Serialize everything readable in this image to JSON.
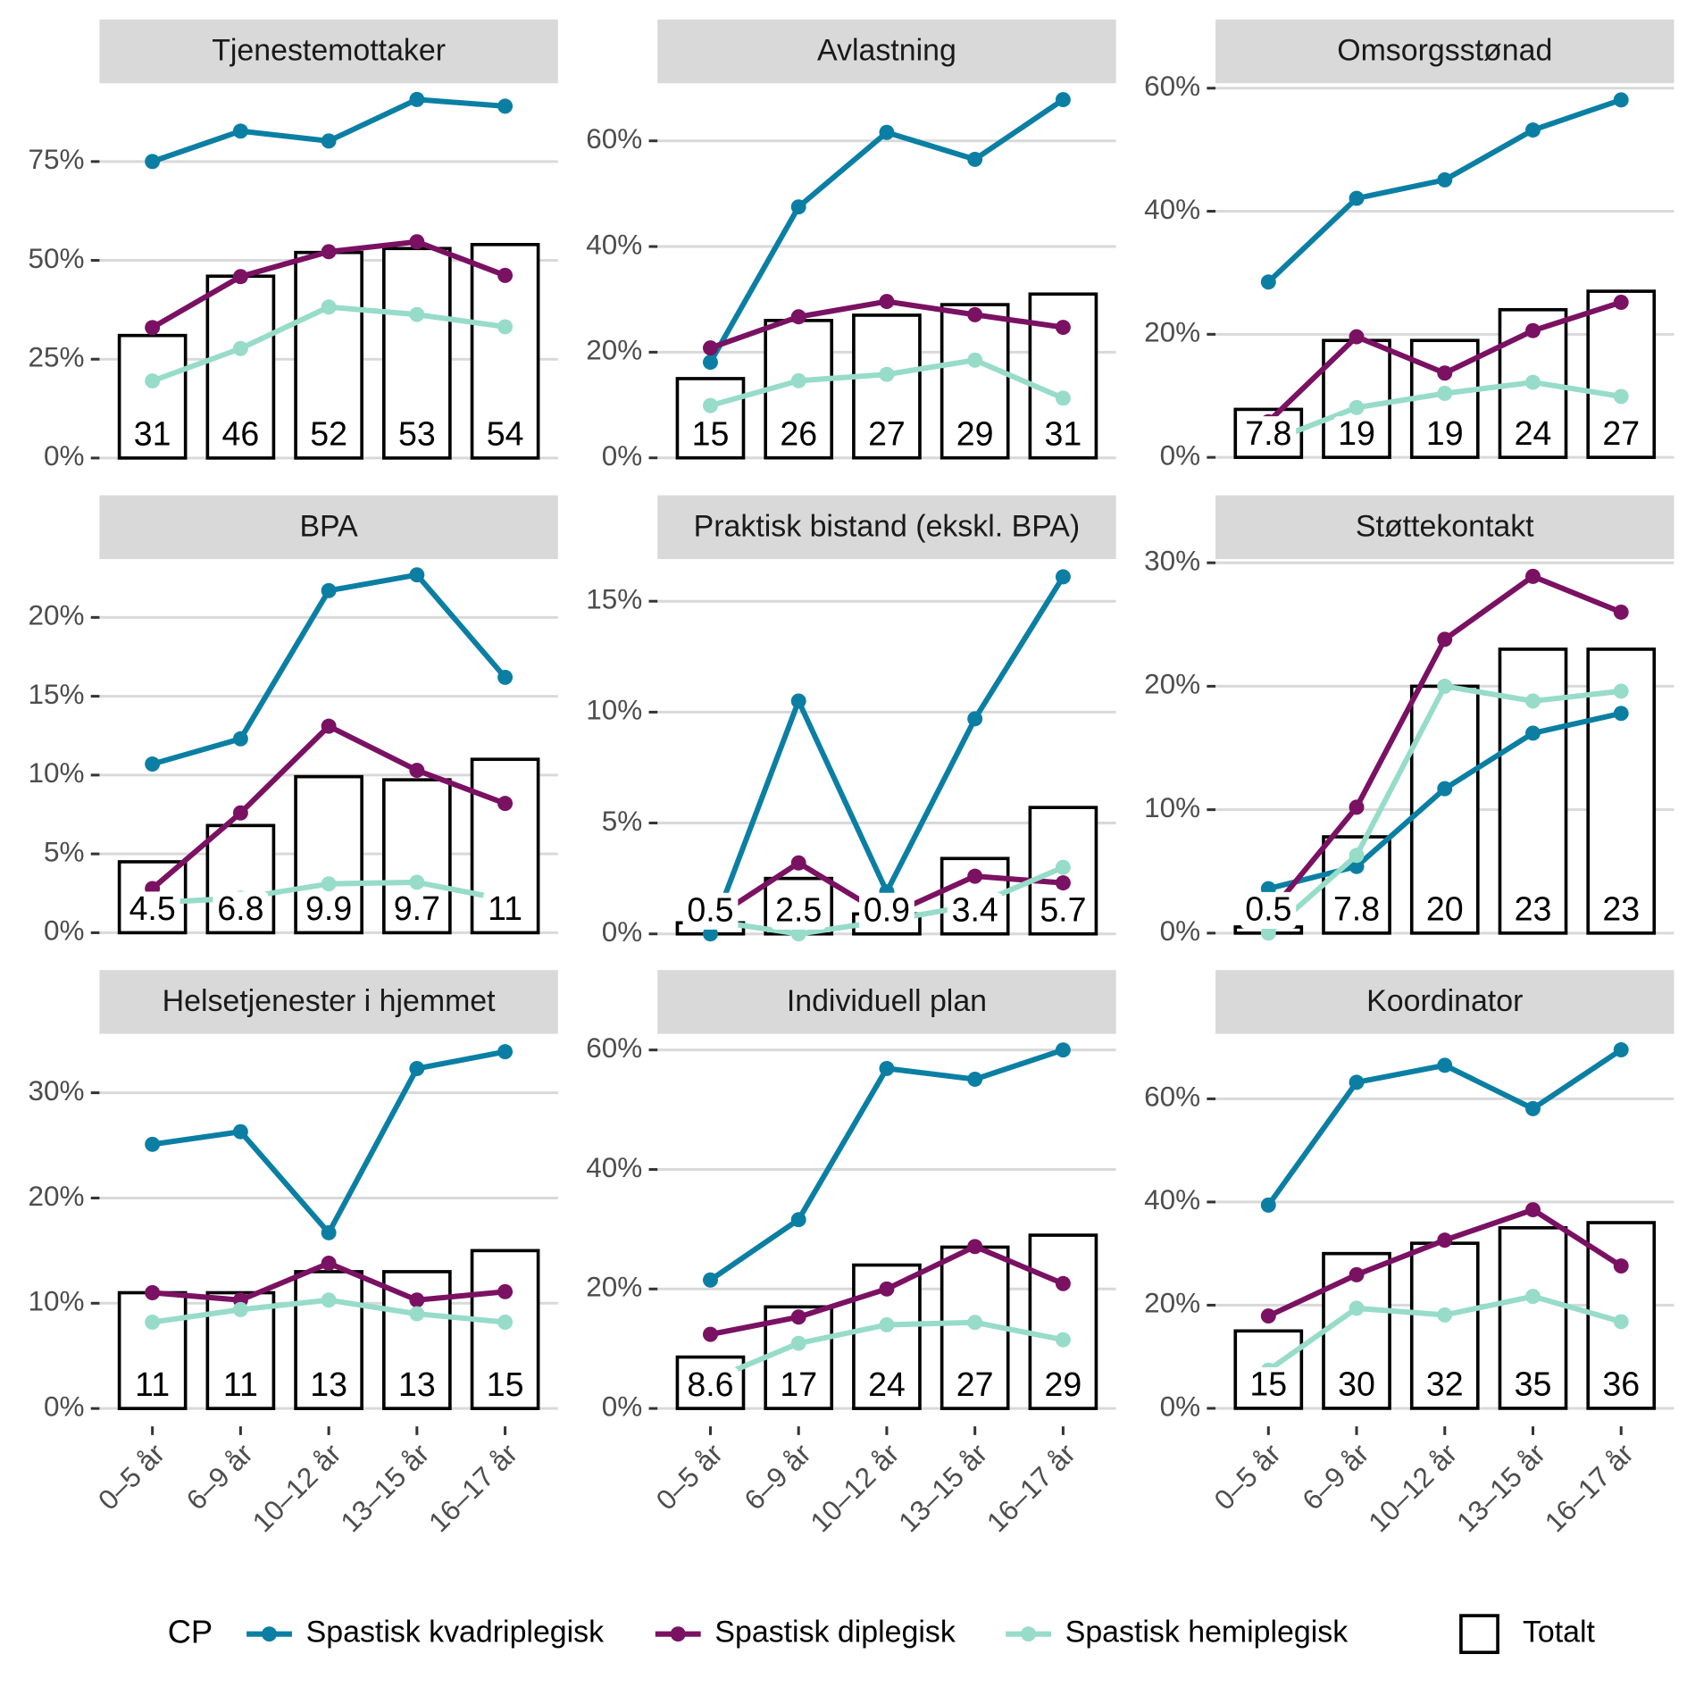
{
  "chart_data": [
    {
      "type": "combo",
      "title": "Tjenestemottaker",
      "categories": [
        "0–5 år",
        "6–9 år",
        "10–12 år",
        "13–15 år",
        "16–17 år"
      ],
      "bars": {
        "name": "Totalt",
        "values": [
          31,
          46,
          52,
          53,
          54
        ]
      },
      "series": [
        {
          "name": "Spastisk kvadriplegisk",
          "color": "#0b7fa3",
          "values": [
            75,
            82.7,
            80.2,
            90.7,
            89
          ]
        },
        {
          "name": "Spastisk diplegisk",
          "color": "#7a1162",
          "values": [
            33,
            45.9,
            52.2,
            54.7,
            46.2
          ]
        },
        {
          "name": "Spastisk hemiplegisk",
          "color": "#97dcc8",
          "values": [
            19.5,
            27.7,
            38.2,
            36.3,
            33.2
          ]
        }
      ],
      "ylim": [
        -4.5,
        94.8
      ],
      "yticks": [
        {
          "value": 0,
          "label": "0%"
        },
        {
          "value": 25,
          "label": "25%"
        },
        {
          "value": 50,
          "label": "50%"
        },
        {
          "value": 75,
          "label": "75%"
        }
      ],
      "grid": true
    },
    {
      "type": "combo",
      "title": "Avlastning",
      "categories": [
        "0–5 år",
        "6–9 år",
        "10–12 år",
        "13–15 år",
        "16–17 år"
      ],
      "bars": {
        "name": "Totalt",
        "values": [
          15,
          26,
          27,
          29,
          31
        ]
      },
      "series": [
        {
          "name": "Spastisk kvadriplegisk",
          "color": "#0b7fa3",
          "values": [
            18.1,
            47.5,
            61.6,
            56.5,
            67.8
          ]
        },
        {
          "name": "Spastisk diplegisk",
          "color": "#7a1162",
          "values": [
            20.8,
            26.7,
            29.6,
            27.1,
            24.7
          ]
        },
        {
          "name": "Spastisk hemiplegisk",
          "color": "#97dcc8",
          "values": [
            9.9,
            14.6,
            15.8,
            18.5,
            11.3
          ]
        }
      ],
      "ylim": [
        -3.4,
        70.9
      ],
      "yticks": [
        {
          "value": 0,
          "label": "0%"
        },
        {
          "value": 20,
          "label": "20%"
        },
        {
          "value": 40,
          "label": "40%"
        },
        {
          "value": 60,
          "label": "60%"
        }
      ],
      "grid": true
    },
    {
      "type": "combo",
      "title": "Omsorgsstønad",
      "categories": [
        "0–5 år",
        "6–9 år",
        "10–12 år",
        "13–15 år",
        "16–17 år"
      ],
      "bars": {
        "name": "Totalt",
        "values": [
          7.8,
          19,
          19,
          24,
          27
        ]
      },
      "series": [
        {
          "name": "Spastisk kvadriplegisk",
          "color": "#0b7fa3",
          "values": [
            28.5,
            42.1,
            45.1,
            53.2,
            58.1
          ]
        },
        {
          "name": "Spastisk diplegisk",
          "color": "#7a1162",
          "values": [
            5.8,
            19.6,
            13.7,
            20.6,
            25.2
          ]
        },
        {
          "name": "Spastisk hemiplegisk",
          "color": "#97dcc8",
          "values": [
            2.5,
            8.1,
            10.4,
            12.2,
            9.9
          ]
        }
      ],
      "ylim": [
        -3,
        60.8
      ],
      "yticks": [
        {
          "value": 0,
          "label": "0%"
        },
        {
          "value": 20,
          "label": "20%"
        },
        {
          "value": 40,
          "label": "40%"
        },
        {
          "value": 60,
          "label": "60%"
        }
      ],
      "grid": true
    },
    {
      "type": "combo",
      "title": "BPA",
      "categories": [
        "0–5 år",
        "6–9 år",
        "10–12 år",
        "13–15 år",
        "16–17 år"
      ],
      "bars": {
        "name": "Totalt",
        "values": [
          4.5,
          6.8,
          9.9,
          9.7,
          11
        ]
      },
      "series": [
        {
          "name": "Spastisk kvadriplegisk",
          "color": "#0b7fa3",
          "values": [
            10.7,
            12.3,
            21.7,
            22.7,
            16.2
          ]
        },
        {
          "name": "Spastisk diplegisk",
          "color": "#7a1162",
          "values": [
            2.8,
            7.6,
            13.1,
            10.3,
            8.2
          ]
        },
        {
          "name": "Spastisk hemiplegisk",
          "color": "#97dcc8",
          "values": [
            1.9,
            2.2,
            3.1,
            3.2,
            2.1
          ]
        }
      ],
      "ylim": [
        -1.2,
        23.7
      ],
      "yticks": [
        {
          "value": 0,
          "label": "0%"
        },
        {
          "value": 5,
          "label": "5%"
        },
        {
          "value": 10,
          "label": "10%"
        },
        {
          "value": 15,
          "label": "15%"
        },
        {
          "value": 20,
          "label": "20%"
        }
      ],
      "grid": true
    },
    {
      "type": "combo",
      "title": "Praktisk bistand (ekskl. BPA)",
      "categories": [
        "0–5 år",
        "6–9 år",
        "10–12 år",
        "13–15 år",
        "16–17 år"
      ],
      "bars": {
        "name": "Totalt",
        "values": [
          0.5,
          2.5,
          0.9,
          3.4,
          5.7
        ]
      },
      "series": [
        {
          "name": "Spastisk kvadriplegisk",
          "color": "#0b7fa3",
          "values": [
            0,
            10.5,
            1.9,
            9.7,
            16.1
          ]
        },
        {
          "name": "Spastisk diplegisk",
          "color": "#7a1162",
          "values": [
            0.6,
            3.2,
            0.8,
            2.6,
            2.3
          ]
        },
        {
          "name": "Spastisk hemiplegisk",
          "color": "#97dcc8",
          "values": [
            0.6,
            0,
            0.6,
            1.3,
            3
          ]
        }
      ],
      "ylim": [
        -0.8,
        16.9
      ],
      "yticks": [
        {
          "value": 0,
          "label": "0%"
        },
        {
          "value": 5,
          "label": "5%"
        },
        {
          "value": 10,
          "label": "10%"
        },
        {
          "value": 15,
          "label": "15%"
        }
      ],
      "grid": true
    },
    {
      "type": "combo",
      "title": "Støttekontakt",
      "categories": [
        "0–5 år",
        "6–9 år",
        "10–12 år",
        "13–15 år",
        "16–17 år"
      ],
      "bars": {
        "name": "Totalt",
        "values": [
          0.5,
          7.8,
          20,
          23,
          23
        ]
      },
      "series": [
        {
          "name": "Spastisk kvadriplegisk",
          "color": "#0b7fa3",
          "values": [
            3.6,
            5.4,
            11.7,
            16.2,
            17.8
          ]
        },
        {
          "name": "Spastisk diplegisk",
          "color": "#7a1162",
          "values": [
            1.5,
            10.2,
            23.8,
            28.9,
            26
          ]
        },
        {
          "name": "Spastisk hemiplegisk",
          "color": "#97dcc8",
          "values": [
            0,
            6.3,
            20,
            18.8,
            19.6
          ]
        }
      ],
      "ylim": [
        -1.5,
        30.3
      ],
      "yticks": [
        {
          "value": 0,
          "label": "0%"
        },
        {
          "value": 10,
          "label": "10%"
        },
        {
          "value": 20,
          "label": "20%"
        },
        {
          "value": 30,
          "label": "30%"
        }
      ],
      "grid": true
    },
    {
      "type": "combo",
      "title": "Helsetjenester i hjemmet",
      "categories": [
        "0–5 år",
        "6–9 år",
        "10–12 år",
        "13–15 år",
        "16–17 år"
      ],
      "bars": {
        "name": "Totalt",
        "values": [
          11,
          11,
          13,
          13,
          15
        ]
      },
      "series": [
        {
          "name": "Spastisk kvadriplegisk",
          "color": "#0b7fa3",
          "values": [
            25.1,
            26.3,
            16.7,
            32.3,
            33.9
          ]
        },
        {
          "name": "Spastisk diplegisk",
          "color": "#7a1162",
          "values": [
            11,
            10.3,
            13.8,
            10.3,
            11.1
          ]
        },
        {
          "name": "Spastisk hemiplegisk",
          "color": "#97dcc8",
          "values": [
            8.2,
            9.4,
            10.3,
            9,
            8.2
          ]
        }
      ],
      "ylim": [
        -1.7,
        35.6
      ],
      "yticks": [
        {
          "value": 0,
          "label": "0%"
        },
        {
          "value": 10,
          "label": "10%"
        },
        {
          "value": 20,
          "label": "20%"
        },
        {
          "value": 30,
          "label": "30%"
        }
      ],
      "grid": true
    },
    {
      "type": "combo",
      "title": "Individuell plan",
      "categories": [
        "0–5 år",
        "6–9 år",
        "10–12 år",
        "13–15 år",
        "16–17 år"
      ],
      "bars": {
        "name": "Totalt",
        "values": [
          8.6,
          17,
          24,
          27,
          29
        ]
      },
      "series": [
        {
          "name": "Spastisk kvadriplegisk",
          "color": "#0b7fa3",
          "values": [
            21.5,
            31.6,
            56.9,
            55.1,
            60
          ]
        },
        {
          "name": "Spastisk diplegisk",
          "color": "#7a1162",
          "values": [
            12.4,
            15.3,
            20,
            27.1,
            20.9
          ]
        },
        {
          "name": "Spastisk hemiplegisk",
          "color": "#97dcc8",
          "values": [
            4.7,
            10.9,
            14,
            14.4,
            11.5
          ]
        }
      ],
      "ylim": [
        -3,
        62.7
      ],
      "yticks": [
        {
          "value": 0,
          "label": "0%"
        },
        {
          "value": 20,
          "label": "20%"
        },
        {
          "value": 40,
          "label": "40%"
        },
        {
          "value": 60,
          "label": "60%"
        }
      ],
      "grid": true
    },
    {
      "type": "combo",
      "title": "Koordinator",
      "categories": [
        "0–5 år",
        "6–9 år",
        "10–12 år",
        "13–15 år",
        "16–17 år"
      ],
      "bars": {
        "name": "Totalt",
        "values": [
          15,
          30,
          32,
          35,
          36
        ]
      },
      "series": [
        {
          "name": "Spastisk kvadriplegisk",
          "color": "#0b7fa3",
          "values": [
            39.4,
            63.2,
            66.5,
            58.1,
            69.5
          ]
        },
        {
          "name": "Spastisk diplegisk",
          "color": "#7a1162",
          "values": [
            17.9,
            25.9,
            32.6,
            38.5,
            27.6
          ]
        },
        {
          "name": "Spastisk hemiplegisk",
          "color": "#97dcc8",
          "values": [
            7.4,
            19.4,
            18.1,
            21.7,
            16.8
          ]
        }
      ],
      "ylim": [
        -3.5,
        72.6
      ],
      "yticks": [
        {
          "value": 0,
          "label": "0%"
        },
        {
          "value": 20,
          "label": "20%"
        },
        {
          "value": 40,
          "label": "40%"
        },
        {
          "value": 60,
          "label": "60%"
        }
      ],
      "grid": true
    }
  ],
  "legend": {
    "title": "CP",
    "position": "bottom"
  }
}
